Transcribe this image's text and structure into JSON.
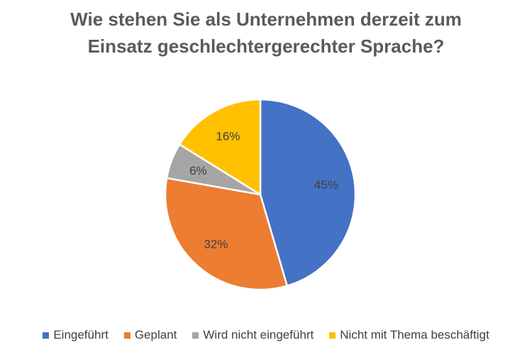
{
  "chart_data": {
    "type": "pie",
    "title_lines": [
      "Wie stehen Sie als Unternehmen derzeit zum",
      "Einsatz geschlechtergerechter Sprache?"
    ],
    "start_angle_deg": 0,
    "direction": "clockwise",
    "slices": [
      {
        "label": "Eingeführt",
        "value": 45,
        "display": "45%",
        "color": "#4472C4"
      },
      {
        "label": "Geplant",
        "value": 32,
        "display": "32%",
        "color": "#ED7D31"
      },
      {
        "label": "Wird nicht eingeführt",
        "value": 6,
        "display": "6%",
        "color": "#A5A5A5"
      },
      {
        "label": "Nicht mit Thema beschäftigt",
        "value": 16,
        "display": "16%",
        "color": "#FFC000"
      }
    ],
    "legend_position": "bottom"
  }
}
